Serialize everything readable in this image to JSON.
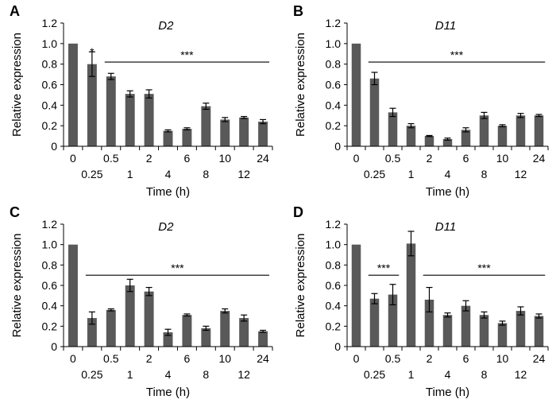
{
  "colors": {
    "bar": "#595959",
    "axis": "#000000",
    "error": "#000000"
  },
  "chart_data": [
    {
      "panel": "A",
      "type": "bar",
      "title": "D2",
      "xlabel": "Time (h)",
      "ylabel": "Relative expression",
      "ylim": [
        0,
        1.2
      ],
      "yticks": [
        "0",
        "0.2",
        "0.4",
        "0.6",
        "0.8",
        "1.0",
        "1.2"
      ],
      "categories": [
        "0",
        "0.25",
        "0.5",
        "1",
        "2",
        "4",
        "6",
        "8",
        "10",
        "12",
        "24"
      ],
      "values": [
        1.0,
        0.8,
        0.68,
        0.51,
        0.51,
        0.15,
        0.17,
        0.39,
        0.26,
        0.28,
        0.24
      ],
      "errors": [
        0.0,
        0.12,
        0.03,
        0.03,
        0.04,
        0.01,
        0.01,
        0.03,
        0.02,
        0.01,
        0.02
      ],
      "annotations": [
        {
          "text": "*",
          "from": 1,
          "to": 1,
          "y": 0.9
        },
        {
          "text": "***",
          "from": 2,
          "to": 10,
          "y": 0.82
        }
      ]
    },
    {
      "panel": "B",
      "type": "bar",
      "title": "D11",
      "xlabel": "Time (h)",
      "ylabel": "Relative expression",
      "ylim": [
        0,
        1.2
      ],
      "yticks": [
        "0",
        "0.2",
        "0.4",
        "0.6",
        "0.8",
        "1.0",
        "1.2"
      ],
      "categories": [
        "0",
        "0.25",
        "0.5",
        "1",
        "2",
        "4",
        "6",
        "8",
        "10",
        "12",
        "24"
      ],
      "values": [
        1.0,
        0.66,
        0.33,
        0.2,
        0.1,
        0.07,
        0.16,
        0.3,
        0.2,
        0.3,
        0.3
      ],
      "errors": [
        0.0,
        0.06,
        0.04,
        0.02,
        0.005,
        0.01,
        0.02,
        0.03,
        0.01,
        0.02,
        0.01
      ],
      "annotations": [
        {
          "text": "***",
          "from": 1,
          "to": 10,
          "y": 0.82
        }
      ]
    },
    {
      "panel": "C",
      "type": "bar",
      "title": "D2",
      "xlabel": "Time (h)",
      "ylabel": "Relative expression",
      "ylim": [
        0,
        1.2
      ],
      "yticks": [
        "0",
        "0.2",
        "0.4",
        "0.6",
        "0.8",
        "1.0",
        "1.2"
      ],
      "categories": [
        "0",
        "0.25",
        "0.5",
        "1",
        "2",
        "4",
        "6",
        "8",
        "10",
        "12",
        "24"
      ],
      "values": [
        1.0,
        0.28,
        0.36,
        0.6,
        0.54,
        0.14,
        0.31,
        0.18,
        0.35,
        0.28,
        0.15
      ],
      "errors": [
        0.0,
        0.06,
        0.01,
        0.06,
        0.04,
        0.03,
        0.01,
        0.02,
        0.02,
        0.03,
        0.01
      ],
      "annotations": [
        {
          "text": "***",
          "from": 1,
          "to": 10,
          "y": 0.7
        }
      ]
    },
    {
      "panel": "D",
      "type": "bar",
      "title": "D11",
      "xlabel": "Time (h)",
      "ylabel": "Relative expression",
      "ylim": [
        0,
        1.2
      ],
      "yticks": [
        "0",
        "0.2",
        "0.4",
        "0.6",
        "0.8",
        "1.0",
        "1.2"
      ],
      "categories": [
        "0",
        "0.25",
        "0.5",
        "1",
        "2",
        "4",
        "6",
        "8",
        "10",
        "12",
        "24"
      ],
      "values": [
        1.0,
        0.47,
        0.51,
        1.01,
        0.46,
        0.31,
        0.4,
        0.31,
        0.23,
        0.35,
        0.3
      ],
      "errors": [
        0.0,
        0.05,
        0.1,
        0.12,
        0.12,
        0.02,
        0.05,
        0.03,
        0.02,
        0.04,
        0.02
      ],
      "annotations": [
        {
          "text": "***",
          "from": 1,
          "to": 2,
          "y": 0.7
        },
        {
          "text": "***",
          "from": 4,
          "to": 10,
          "y": 0.7
        }
      ]
    }
  ]
}
